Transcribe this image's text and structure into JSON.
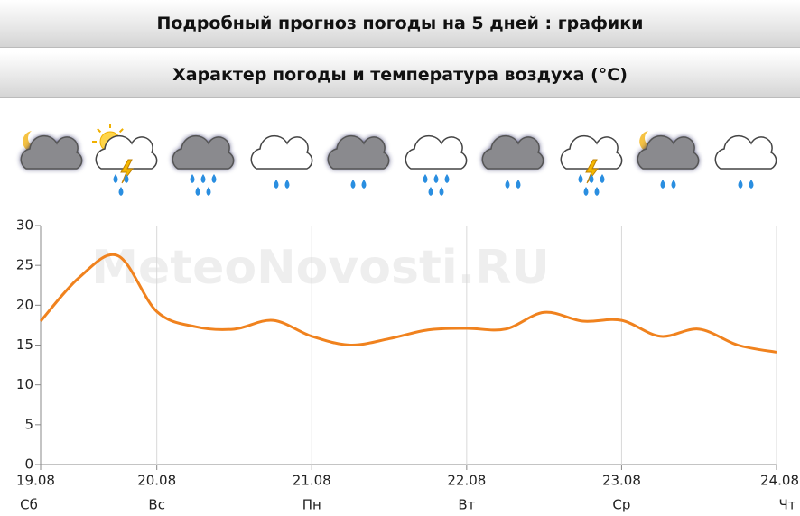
{
  "header": {
    "title": "Подробный прогноз погоды на 5 дней : графики"
  },
  "chart_data": {
    "type": "line",
    "title": "Характер погоды и температура воздуха (°C)",
    "watermark": "MeteoNovosti.RU",
    "x": [
      0.25,
      0.5,
      0.75,
      1.0,
      1.25,
      1.5,
      1.75,
      2.0,
      2.25,
      2.5,
      2.75,
      3.0,
      3.25,
      3.5,
      3.75,
      4.0,
      4.25,
      4.5,
      4.75,
      5.0
    ],
    "series": [
      {
        "name": "Температура",
        "color": "#f0821e",
        "values": [
          18,
          23.5,
          26.2,
          19.2,
          17.3,
          17.0,
          18.1,
          16.1,
          15.0,
          15.8,
          16.9,
          17.1,
          17.0,
          19.1,
          18.0,
          18.1,
          16.1,
          17.0,
          15.0,
          14.1
        ]
      }
    ],
    "xlim": [
      0.25,
      5
    ],
    "xticks": [
      {
        "value": 0.25,
        "label": "19.08"
      },
      {
        "value": 1,
        "label": "20.08"
      },
      {
        "value": 2,
        "label": "21.08"
      },
      {
        "value": 3,
        "label": "22.08"
      },
      {
        "value": 4,
        "label": "23.08"
      },
      {
        "value": 5,
        "label": "24.08"
      }
    ],
    "weekdays": [
      "Сб",
      "Вс",
      "Пн",
      "Вт",
      "Ср",
      "Чт"
    ],
    "ylim": [
      0,
      30
    ],
    "yticks": [
      0,
      5,
      10,
      15,
      20,
      25,
      30
    ],
    "grid": "x"
  }
}
